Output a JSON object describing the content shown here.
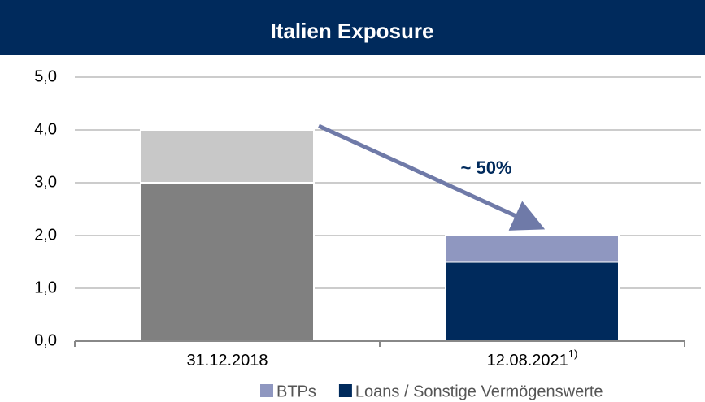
{
  "chart_data": {
    "type": "stacked_bar",
    "title": "Italien Exposure",
    "categories": [
      "31.12.2018",
      "12.08.2021"
    ],
    "category_superscripts": [
      null,
      "1)"
    ],
    "series": [
      {
        "name": "Loans / Sonstige Vermögenswerte",
        "color": "#002a5c",
        "colors": [
          "#808080",
          "#002a5c"
        ],
        "values": [
          3.0,
          1.5
        ]
      },
      {
        "name": "BTPs",
        "color": "#8f97c0",
        "colors": [
          "#c8c8c8",
          "#8f97c0"
        ],
        "values": [
          1.0,
          0.5
        ]
      }
    ],
    "ylim": [
      0,
      5
    ],
    "yticks": [
      {
        "value": 0,
        "label": "0,0"
      },
      {
        "value": 1,
        "label": "1,0"
      },
      {
        "value": 2,
        "label": "2,0"
      },
      {
        "value": 3,
        "label": "3,0"
      },
      {
        "value": 4,
        "label": "4,0"
      },
      {
        "value": 5,
        "label": "5,0"
      }
    ],
    "grid": true,
    "annotation": "~ 50%",
    "legend_order": [
      1,
      0
    ]
  }
}
